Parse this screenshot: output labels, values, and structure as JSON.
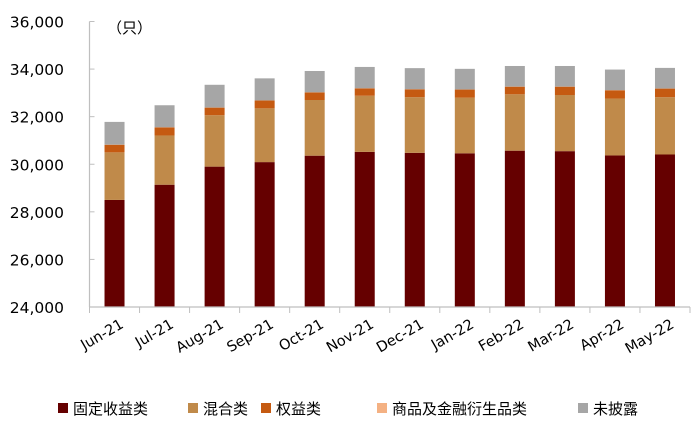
{
  "chart_data": {
    "type": "bar",
    "stacked": true,
    "title": "",
    "unit_label": "（只）",
    "xlabel": "",
    "ylabel": "只",
    "ylim": [
      24000,
      36000
    ],
    "yticks": [
      24000,
      26000,
      28000,
      30000,
      32000,
      34000,
      36000
    ],
    "ytick_labels": [
      "24,000",
      "26,000",
      "28,000",
      "30,000",
      "32,000",
      "34,000",
      "36,000"
    ],
    "grid": false,
    "legend_position": "bottom",
    "categories": [
      "Jun-21",
      "Jul-21",
      "Aug-21",
      "Sep-21",
      "Oct-21",
      "Nov-21",
      "Dec-21",
      "Jan-22",
      "Feb-22",
      "Mar-22",
      "Apr-22",
      "May-22"
    ],
    "series": [
      {
        "name": "固定收益类",
        "color": "#650000",
        "values": [
          28500,
          29140,
          29900,
          30090,
          30360,
          30520,
          30480,
          30460,
          30570,
          30550,
          30370,
          30410
        ]
      },
      {
        "name": "混合类",
        "color": "#C08A4A",
        "values": [
          2000,
          2070,
          2160,
          2260,
          2340,
          2360,
          2340,
          2340,
          2370,
          2360,
          2390,
          2410
        ]
      },
      {
        "name": "权益类",
        "color": "#C55A11",
        "values": [
          320,
          340,
          320,
          330,
          320,
          310,
          330,
          340,
          320,
          350,
          350,
          360
        ]
      },
      {
        "name": "商品及金融衍生品类",
        "color": "#F4B183",
        "values": [
          5,
          5,
          5,
          5,
          5,
          5,
          5,
          5,
          5,
          5,
          5,
          5
        ]
      },
      {
        "name": "未披露",
        "color": "#A6A6A6",
        "values": [
          955,
          925,
          955,
          925,
          895,
          895,
          885,
          865,
          865,
          865,
          865,
          865
        ]
      }
    ],
    "totals_approx": [
      31780,
      32480,
      33340,
      33610,
      33920,
      34090,
      34040,
      34010,
      34130,
      34130,
      33980,
      34050
    ]
  },
  "legend": {
    "items": [
      {
        "label": "固定收益类",
        "color": "#650000"
      },
      {
        "label": "混合类",
        "color": "#C08A4A"
      },
      {
        "label": "权益类",
        "color": "#C55A11"
      },
      {
        "label": "商品及金融衍生品类",
        "color": "#F4B183"
      },
      {
        "label": "未披露",
        "color": "#A6A6A6"
      }
    ]
  },
  "colors": {
    "axis": "#BFBFBF"
  }
}
